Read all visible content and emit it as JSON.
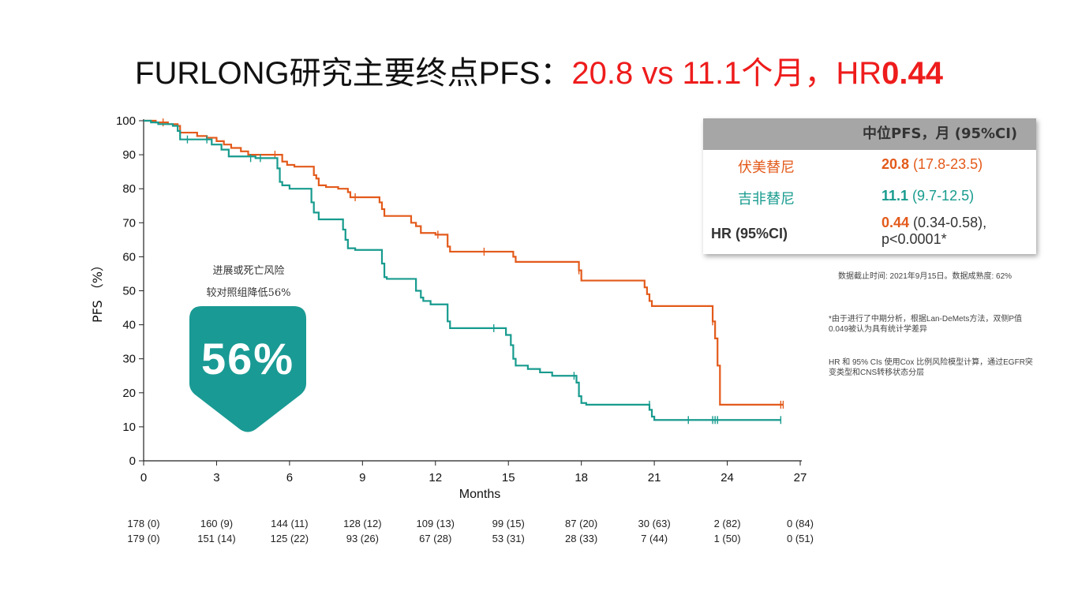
{
  "title": {
    "prefix": "FURLONG研究主要终点PFS：",
    "pfs_values": "20.8 vs 11.1个月，",
    "hr_label": "HR",
    "hr_value": "0.44"
  },
  "badge": {
    "line1": "进展或死亡风险",
    "line2": "较对照组降低56%",
    "value": "56%",
    "color": "#1a9a94"
  },
  "table": {
    "header": "中位PFS，月 (95%CI)",
    "rows": [
      {
        "label": "伏美替尼",
        "value_bold": "20.8",
        "value_rest": " (17.8-23.5)",
        "color": "#e35a1b"
      },
      {
        "label": "吉非替尼",
        "value_bold": "11.1",
        "value_rest": " (9.7-12.5)",
        "color": "#179b8e"
      },
      {
        "label": "HR (95%CI)",
        "value_bold": "0.44",
        "value_rest": " (0.34-0.58),",
        "value_line2": "p<0.0001*",
        "color": "#e35a1b"
      }
    ]
  },
  "notes": {
    "cutoff": "数据截止时间: 2021年9月15日。数据成熟度: 62%",
    "note1": "*由于进行了中期分析，根据Lan-DeMets方法，双侧P值0.049被认为具有统计学差异",
    "note2": "HR 和 95% CIs 使用Cox 比例风险模型计算，通过EGFR突变类型和CNS转移状态分层"
  },
  "risk_table": {
    "row1": [
      "178 (0)",
      "160 (9)",
      "144 (11)",
      "128 (12)",
      "109 (13)",
      "99 (15)",
      "87 (20)",
      "30 (63)",
      "2 (82)",
      "0 (84)"
    ],
    "row2": [
      "179 (0)",
      "151 (14)",
      "125 (22)",
      "93 (26)",
      "67 (28)",
      "53 (31)",
      "28 (33)",
      "7 (44)",
      "1 (50)",
      "0 (51)"
    ]
  },
  "chart_data": {
    "type": "line",
    "xlabel": "Months",
    "ylabel": "PFS （%）",
    "xlim": [
      0,
      27
    ],
    "ylim": [
      0,
      100
    ],
    "xticks": [
      0,
      3,
      6,
      9,
      12,
      15,
      18,
      21,
      24,
      27
    ],
    "yticks": [
      0,
      10,
      20,
      30,
      40,
      50,
      60,
      70,
      80,
      90,
      100
    ],
    "series": [
      {
        "name": "伏美替尼",
        "color": "#e35a1b",
        "step": [
          [
            0,
            100
          ],
          [
            0.3,
            100
          ],
          [
            0.5,
            99.5
          ],
          [
            1.0,
            99
          ],
          [
            1.4,
            98.5
          ],
          [
            1.5,
            96.5
          ],
          [
            2.2,
            95.5
          ],
          [
            2.6,
            95
          ],
          [
            3.0,
            94
          ],
          [
            3.3,
            93
          ],
          [
            3.6,
            92
          ],
          [
            4.0,
            91
          ],
          [
            4.3,
            90
          ],
          [
            5.6,
            90
          ],
          [
            5.7,
            88
          ],
          [
            5.9,
            87
          ],
          [
            6.2,
            86.5
          ],
          [
            6.9,
            86.5
          ],
          [
            7.0,
            84
          ],
          [
            7.1,
            83
          ],
          [
            7.2,
            81
          ],
          [
            7.5,
            80.5
          ],
          [
            8.0,
            80
          ],
          [
            8.4,
            79
          ],
          [
            8.5,
            77.5
          ],
          [
            9.6,
            77.5
          ],
          [
            9.7,
            76
          ],
          [
            9.8,
            74
          ],
          [
            9.9,
            72
          ],
          [
            10.8,
            72
          ],
          [
            11.0,
            70
          ],
          [
            11.2,
            69
          ],
          [
            11.4,
            67
          ],
          [
            12.0,
            66.5
          ],
          [
            12.4,
            66.5
          ],
          [
            12.5,
            63
          ],
          [
            12.6,
            61.5
          ],
          [
            15.1,
            61.5
          ],
          [
            15.2,
            60
          ],
          [
            15.3,
            58.5
          ],
          [
            17.8,
            58.5
          ],
          [
            17.9,
            56
          ],
          [
            18.0,
            53
          ],
          [
            20.5,
            53
          ],
          [
            20.6,
            51
          ],
          [
            20.7,
            49
          ],
          [
            20.8,
            47
          ],
          [
            20.9,
            45.5
          ],
          [
            23.3,
            45.5
          ],
          [
            23.4,
            41
          ],
          [
            23.5,
            36
          ],
          [
            23.6,
            28
          ],
          [
            23.7,
            16.5
          ],
          [
            26.3,
            16.5
          ]
        ],
        "censors": [
          [
            0.8,
            99.5
          ],
          [
            5.4,
            90
          ],
          [
            8.7,
            77.5
          ],
          [
            12.1,
            66.5
          ],
          [
            14.0,
            61.5
          ],
          [
            17.9,
            56
          ],
          [
            23.4,
            41
          ],
          [
            26.2,
            16.5
          ],
          [
            26.3,
            16.5
          ]
        ]
      },
      {
        "name": "吉非替尼",
        "color": "#179b8e",
        "step": [
          [
            0,
            100
          ],
          [
            0.3,
            99.5
          ],
          [
            0.6,
            99
          ],
          [
            1.2,
            98.5
          ],
          [
            1.4,
            97
          ],
          [
            1.5,
            94.5
          ],
          [
            2.7,
            94.5
          ],
          [
            2.8,
            93
          ],
          [
            3.2,
            91.5
          ],
          [
            3.5,
            89.5
          ],
          [
            4.5,
            89.5
          ],
          [
            4.6,
            89
          ],
          [
            5.4,
            89
          ],
          [
            5.5,
            86
          ],
          [
            5.6,
            82
          ],
          [
            5.7,
            81
          ],
          [
            6.0,
            80
          ],
          [
            6.8,
            80
          ],
          [
            6.9,
            76
          ],
          [
            7.0,
            73
          ],
          [
            7.2,
            71
          ],
          [
            8.1,
            71
          ],
          [
            8.2,
            68
          ],
          [
            8.3,
            65
          ],
          [
            8.4,
            62.5
          ],
          [
            8.7,
            62
          ],
          [
            9.7,
            62
          ],
          [
            9.8,
            58
          ],
          [
            9.9,
            54
          ],
          [
            10.0,
            53.5
          ],
          [
            11.1,
            53.5
          ],
          [
            11.2,
            50
          ],
          [
            11.4,
            48
          ],
          [
            11.5,
            47
          ],
          [
            11.8,
            46
          ],
          [
            12.4,
            46
          ],
          [
            12.5,
            41
          ],
          [
            12.6,
            39
          ],
          [
            14.8,
            39
          ],
          [
            14.9,
            37
          ],
          [
            15.1,
            34
          ],
          [
            15.2,
            30
          ],
          [
            15.3,
            28
          ],
          [
            15.8,
            27
          ],
          [
            16.3,
            26
          ],
          [
            16.8,
            25
          ],
          [
            17.7,
            25
          ],
          [
            17.8,
            23
          ],
          [
            17.9,
            19
          ],
          [
            18.0,
            17
          ],
          [
            18.2,
            16.5
          ],
          [
            20.7,
            16.5
          ],
          [
            20.8,
            15
          ],
          [
            20.9,
            13
          ],
          [
            21.0,
            12
          ],
          [
            26.2,
            12
          ]
        ],
        "censors": [
          [
            1.8,
            94.5
          ],
          [
            2.6,
            94.5
          ],
          [
            4.4,
            89
          ],
          [
            4.8,
            89
          ],
          [
            14.4,
            39
          ],
          [
            17.7,
            25
          ],
          [
            20.8,
            16.5
          ],
          [
            22.4,
            12
          ],
          [
            23.4,
            12
          ],
          [
            23.5,
            12
          ],
          [
            23.6,
            12
          ],
          [
            26.2,
            12
          ]
        ]
      }
    ]
  }
}
